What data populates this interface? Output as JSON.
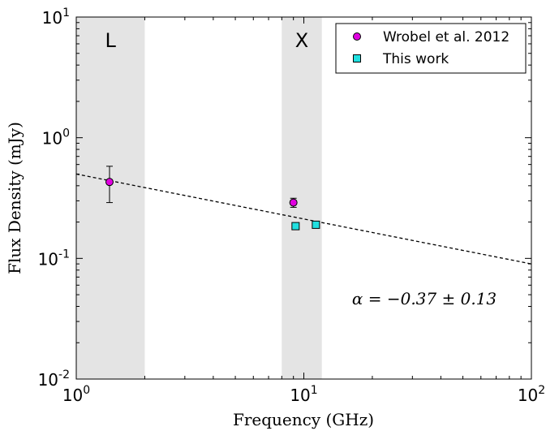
{
  "chart_data": {
    "type": "scatter",
    "xscale": "log",
    "yscale": "log",
    "xlim": [
      1,
      100
    ],
    "ylim": [
      0.01,
      10
    ],
    "xlabel": "Frequency (GHz)",
    "ylabel": "Flux Density (mJy)",
    "x_ticks": [
      {
        "value": 1,
        "base": "10",
        "exp": "0"
      },
      {
        "value": 10,
        "base": "10",
        "exp": "1"
      },
      {
        "value": 100,
        "base": "10",
        "exp": "2"
      }
    ],
    "y_ticks": [
      {
        "value": 0.01,
        "base": "10",
        "exp": "-2"
      },
      {
        "value": 0.1,
        "base": "10",
        "exp": "-1"
      },
      {
        "value": 1,
        "base": "10",
        "exp": "0"
      },
      {
        "value": 10,
        "base": "10",
        "exp": "1"
      }
    ],
    "bands": [
      {
        "label": "L",
        "x_range": [
          1.0,
          2.0
        ],
        "color": "#e4e4e4"
      },
      {
        "label": "X",
        "x_range": [
          8.0,
          12.0
        ],
        "color": "#e4e4e4"
      }
    ],
    "series": [
      {
        "name": "Wrobel et al. 2012",
        "marker": "circle",
        "color": "#e000e0",
        "points": [
          {
            "x": 1.4,
            "y": 0.43,
            "y_low": 0.29,
            "y_high": 0.58
          },
          {
            "x": 9.0,
            "y": 0.29,
            "y_low": 0.265,
            "y_high": 0.315
          }
        ]
      },
      {
        "name": "This work",
        "marker": "square",
        "color": "#20e0e0",
        "points": [
          {
            "x": 9.2,
            "y": 0.185,
            "y_low": 0.175,
            "y_high": 0.195
          },
          {
            "x": 11.3,
            "y": 0.19,
            "y_low": 0.18,
            "y_high": 0.2
          }
        ]
      }
    ],
    "fit_line": {
      "style": "dashed",
      "points": [
        {
          "x": 1,
          "y": 0.5
        },
        {
          "x": 100,
          "y": 0.09
        }
      ]
    },
    "annotation": "α = −0.37 ± 0.13",
    "legend_position": "top-right",
    "grid": false
  }
}
